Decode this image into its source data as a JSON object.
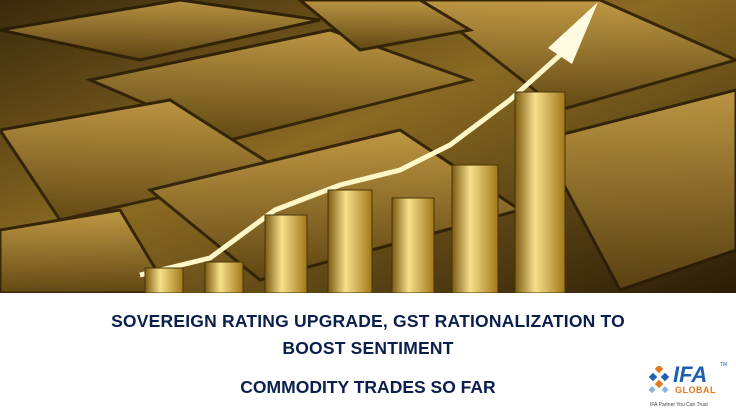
{
  "banner": {
    "headline_lines": [
      "SOVEREIGN RATING UPGRADE, GST RATIONALIZATION TO",
      "BOOST SENTIMENT"
    ],
    "subheadline": "COMMODITY TRADES SO FAR"
  },
  "logo": {
    "name": "IFA",
    "trademark": "TM",
    "sub": "GLOBAL",
    "tagline": "IFA Partner You Can Trust"
  }
}
